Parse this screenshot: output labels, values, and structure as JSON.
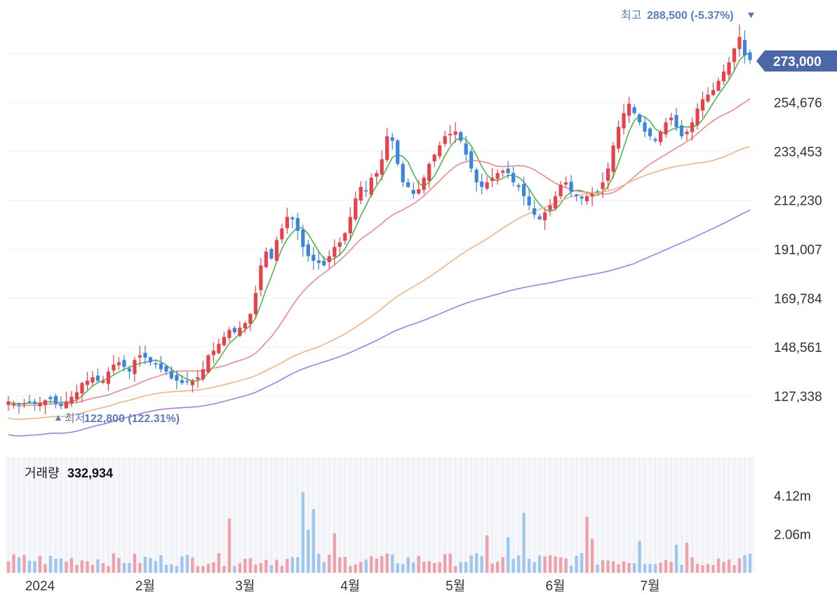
{
  "chart_data": {
    "type": "candlestick",
    "price_axis": {
      "ticks": [
        127338,
        148561,
        169784,
        191007,
        212230,
        233453,
        254676
      ],
      "tick_labels": [
        "127,338",
        "148,561",
        "169,784",
        "191,007",
        "212,230",
        "233,453",
        "254,676"
      ]
    },
    "current_price": {
      "value": 273000,
      "label": "273,000"
    },
    "high_marker": {
      "label": "최고",
      "value": 288500,
      "value_text": "288,500 (-5.37%)",
      "icon": "triangle-down-icon"
    },
    "low_marker": {
      "label": "최저",
      "value": 122800,
      "value_text": "122,800 (122.31%)",
      "icon": "triangle-up-icon"
    },
    "time_axis": {
      "labels": [
        "2024",
        "2월",
        "3월",
        "4월",
        "5월",
        "6월",
        "7월"
      ],
      "label_session_index": [
        6,
        26,
        45,
        65,
        85,
        104,
        122
      ]
    },
    "volume": {
      "title": "거래량",
      "latest": "332,934",
      "tick_labels": [
        "4.12m",
        "2.06m"
      ],
      "tick_values": [
        4120000,
        2060000
      ]
    },
    "closes": [
      125000,
      124000,
      123500,
      124200,
      125000,
      124000,
      124500,
      125500,
      126000,
      124000,
      123000,
      125000,
      127000,
      129000,
      133000,
      134000,
      135500,
      134000,
      134000,
      138000,
      141000,
      142000,
      140000,
      138000,
      143000,
      145000,
      144000,
      142000,
      141000,
      139000,
      138000,
      135000,
      134000,
      133000,
      133500,
      134000,
      135500,
      139000,
      145000,
      147000,
      150000,
      153000,
      156000,
      155000,
      157000,
      159000,
      163000,
      172000,
      184000,
      190000,
      187000,
      195000,
      200000,
      205000,
      204000,
      199000,
      192000,
      188000,
      186000,
      185000,
      184000,
      188000,
      192000,
      194000,
      198000,
      205000,
      213000,
      218000,
      216000,
      222000,
      224000,
      230000,
      240000,
      238000,
      228000,
      220000,
      218000,
      215000,
      217000,
      222000,
      228000,
      232000,
      236000,
      240000,
      241000,
      242000,
      238000,
      232000,
      226000,
      220000,
      218000,
      220000,
      222000,
      224000,
      225000,
      224000,
      220000,
      218000,
      214000,
      210000,
      206000,
      204000,
      207000,
      210000,
      214000,
      219000,
      220000,
      216000,
      214000,
      213000,
      214000,
      215000,
      216000,
      220000,
      226000,
      236000,
      244000,
      250000,
      254000,
      250000,
      246000,
      242000,
      240000,
      238000,
      242000,
      246000,
      248000,
      244000,
      240000,
      242000,
      246000,
      252000,
      256000,
      258000,
      260000,
      264000,
      268000,
      272000,
      278000,
      283000,
      275000,
      273000
    ],
    "moving_averages": [
      {
        "color": "#4cb84c",
        "period": 5
      },
      {
        "color": "#ef8a8a",
        "period": 20
      },
      {
        "color": "#f5b37f",
        "period": 60
      },
      {
        "color": "#a37bef",
        "period": 120
      }
    ],
    "colors": {
      "up": "#e8414c",
      "down": "#3a85e0",
      "up_volume": "#f0a0a8",
      "down_volume": "#9fc6ef",
      "current_badge": "#4a68a8",
      "marker_text": "#5a7cc0"
    }
  }
}
